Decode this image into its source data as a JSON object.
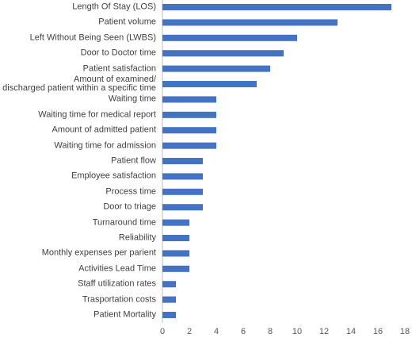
{
  "chart_data": {
    "type": "bar",
    "orientation": "horizontal",
    "categories": [
      "Length Of Stay (LOS)",
      "Patient volume",
      "Left Without Being Seen (LWBS)",
      "Door to Doctor time",
      "Patient satisfaction",
      "Amount of examined/\ndischarged patient within a specific time",
      "Waiting time",
      "Waiting time for medical report",
      "Amount of admitted patient",
      "Waiting time for admission",
      "Patient flow",
      "Employee satisfaction",
      "Process time",
      "Door to triage",
      "Turnaround time",
      "Reliability",
      "Monthly expenses per parient",
      "Activities Lead Time",
      "Staff utilization rates",
      "Trasportation costs",
      "Patient Mortality"
    ],
    "values": [
      17,
      13,
      10,
      9,
      8,
      7,
      4,
      4,
      4,
      4,
      3,
      3,
      3,
      3,
      2,
      2,
      2,
      2,
      1,
      1,
      1
    ],
    "color": "#4472c4",
    "xlim": [
      0,
      18
    ],
    "xticks": [
      0,
      2,
      4,
      6,
      8,
      10,
      12,
      14,
      16,
      18
    ],
    "grid": false
  }
}
